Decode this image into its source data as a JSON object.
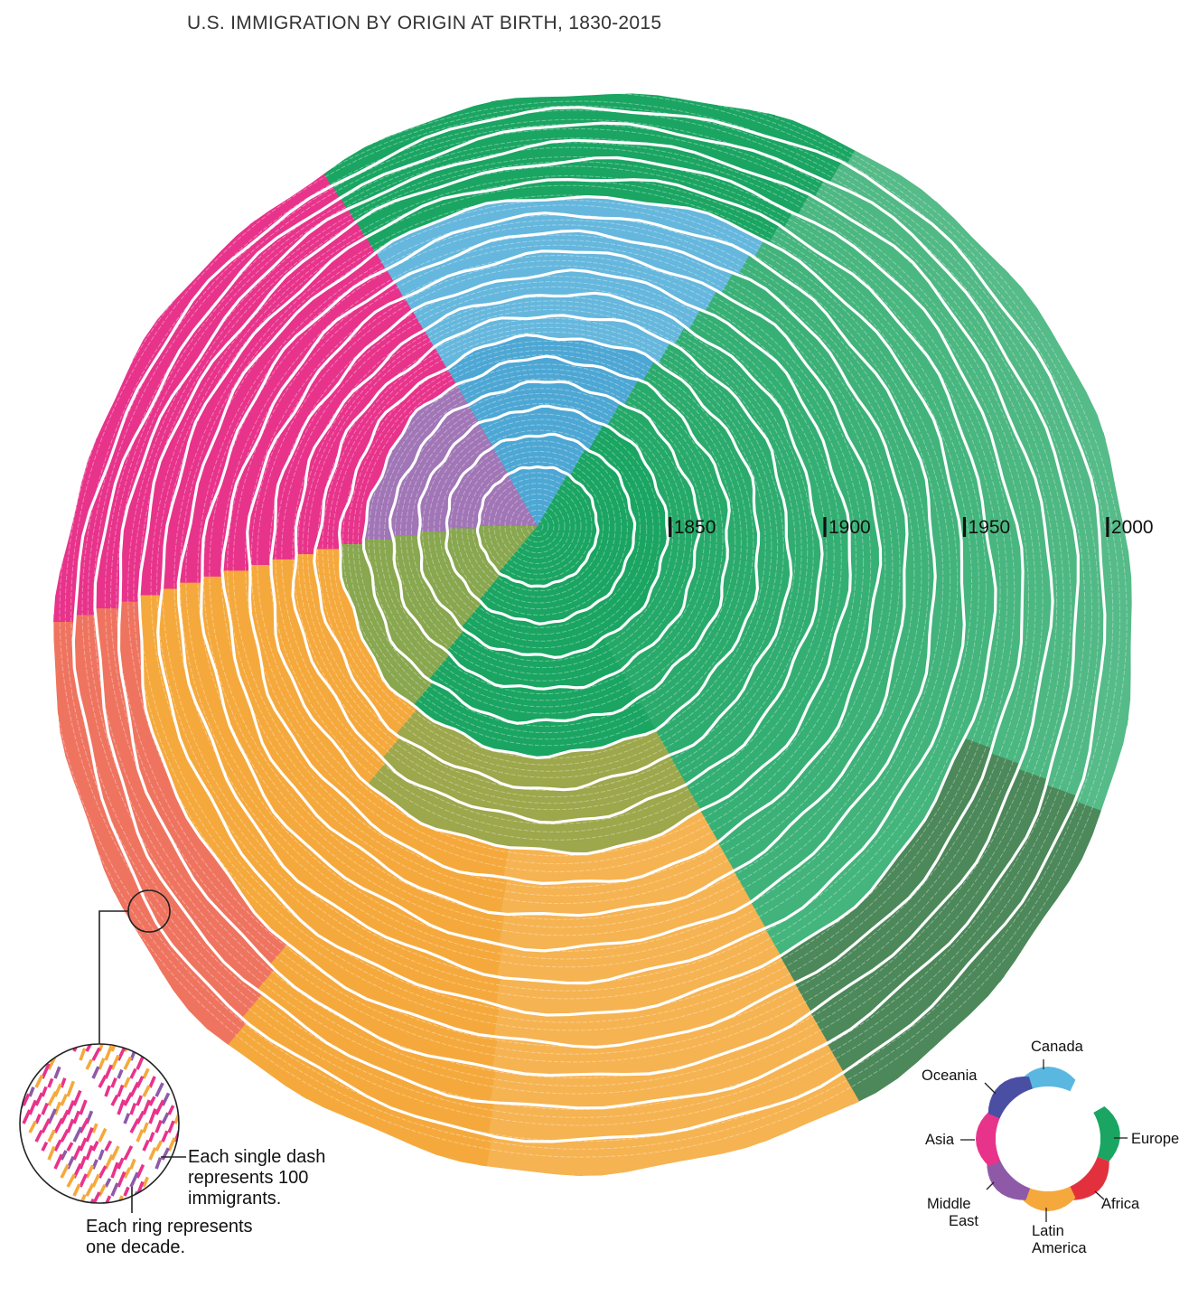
{
  "title": "U.S. IMMIGRATION BY ORIGIN AT BIRTH, 1830-2015",
  "colors": {
    "canada": "#5ab8e0",
    "europe": "#1aa562",
    "africa": "#e2313d",
    "latin_america": "#f5a93c",
    "middle_east": "#8e5aa8",
    "asia": "#e8338b",
    "oceania": "#4a4fa3",
    "ring_gap": "#ffffff"
  },
  "year_markers": [
    {
      "label": "1850"
    },
    {
      "label": "1900"
    },
    {
      "label": "1950"
    },
    {
      "label": "2000"
    }
  ],
  "notes": {
    "dash": "Each single dash represents 100 immigrants.",
    "dash_lines": [
      "Each single dash",
      "represents 100",
      "immigrants."
    ],
    "ring": "Each ring represents one decade.",
    "ring_lines": [
      "Each ring represents",
      "one decade."
    ]
  },
  "key": {
    "regions": [
      {
        "id": "canada",
        "label": "Canada"
      },
      {
        "id": "europe",
        "label": "Europe"
      },
      {
        "id": "africa",
        "label": "Africa"
      },
      {
        "id": "latin_america",
        "label": "Latin America"
      },
      {
        "id": "middle_east",
        "label": "Middle East"
      },
      {
        "id": "asia",
        "label": "Asia"
      },
      {
        "id": "oceania",
        "label": "Oceania"
      }
    ]
  }
}
